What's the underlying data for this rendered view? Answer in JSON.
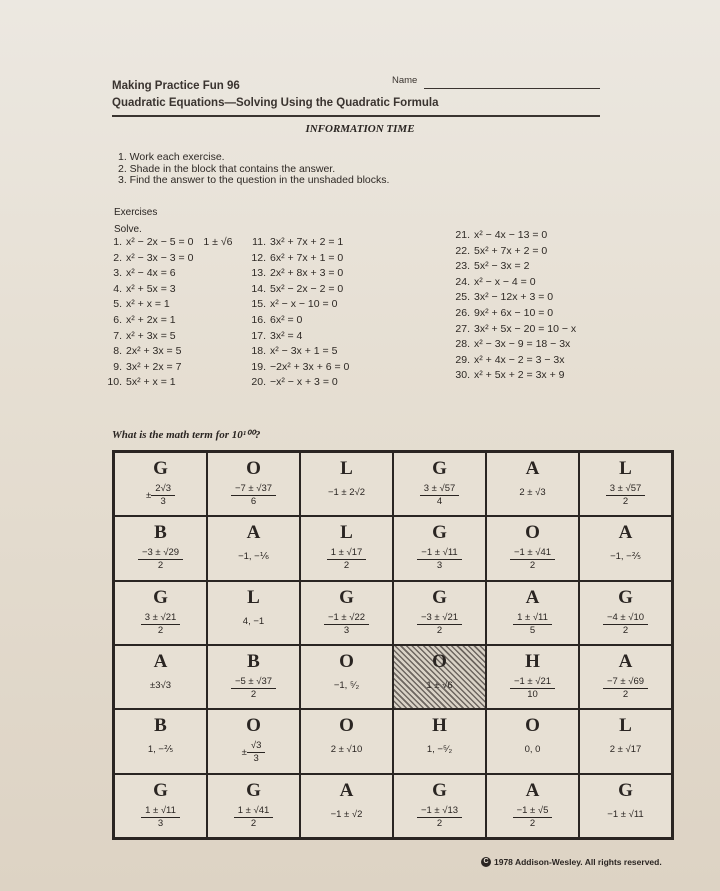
{
  "header": {
    "series": "Making Practice Fun 96",
    "name_label": "Name",
    "subtitle": "Quadratic Equations—Solving Using the Quadratic Formula",
    "section": "INFORMATION TIME"
  },
  "instructions": [
    "1.  Work each exercise.",
    "2.  Shade in the block that contains the answer.",
    "3.  Find the answer to the question in the unshaded blocks."
  ],
  "exercises_heading": "Exercises",
  "solve_label": "Solve.",
  "exercises": [
    {
      "n": "1.",
      "eq": "x² − 2x − 5 = 0",
      "answer": "1 ± √6"
    },
    {
      "n": "2.",
      "eq": "x² − 3x − 3 = 0"
    },
    {
      "n": "3.",
      "eq": "x² − 4x = 6"
    },
    {
      "n": "4.",
      "eq": "x² + 5x = 3"
    },
    {
      "n": "5.",
      "eq": "x² + x = 1"
    },
    {
      "n": "6.",
      "eq": "x² + 2x = 1"
    },
    {
      "n": "7.",
      "eq": "x² + 3x = 5"
    },
    {
      "n": "8.",
      "eq": "2x² + 3x = 5"
    },
    {
      "n": "9.",
      "eq": "3x² + 2x = 7"
    },
    {
      "n": "10.",
      "eq": "5x² + x = 1"
    },
    {
      "n": "11.",
      "eq": "3x² + 7x + 2 = 1"
    },
    {
      "n": "12.",
      "eq": "6x² + 7x + 1 = 0"
    },
    {
      "n": "13.",
      "eq": "2x² + 8x + 3 = 0"
    },
    {
      "n": "14.",
      "eq": "5x² − 2x − 2 = 0"
    },
    {
      "n": "15.",
      "eq": "x² − x − 10 = 0"
    },
    {
      "n": "16.",
      "eq": "6x² = 0"
    },
    {
      "n": "17.",
      "eq": "3x² = 4"
    },
    {
      "n": "18.",
      "eq": "x² − 3x + 1 = 5"
    },
    {
      "n": "19.",
      "eq": "−2x² + 3x + 6 = 0"
    },
    {
      "n": "20.",
      "eq": "−x² − x + 3 = 0"
    },
    {
      "n": "21.",
      "eq": "x² − 4x − 13 = 0"
    },
    {
      "n": "22.",
      "eq": "5x² + 7x + 2 = 0"
    },
    {
      "n": "23.",
      "eq": "5x² − 3x = 2"
    },
    {
      "n": "24.",
      "eq": "x² − x − 4 = 0"
    },
    {
      "n": "25.",
      "eq": "3x² − 12x + 3 = 0"
    },
    {
      "n": "26.",
      "eq": "9x² + 6x − 10 = 0"
    },
    {
      "n": "27.",
      "eq": "3x² + 5x − 20 = 10 − x"
    },
    {
      "n": "28.",
      "eq": "x² − 3x − 9 = 18 − 3x"
    },
    {
      "n": "29.",
      "eq": "x² + 4x − 2 = 3 − 3x"
    },
    {
      "n": "30.",
      "eq": "x² + 5x + 2 = 3x + 9"
    }
  ],
  "question": "What is the math term for 10¹⁰⁰?",
  "grid": [
    {
      "letter": "G",
      "pre": "±",
      "num": "2√3",
      "den": "3"
    },
    {
      "letter": "O",
      "num": "−7 ± √37",
      "den": "6"
    },
    {
      "letter": "L",
      "text": "−1 ± 2√2"
    },
    {
      "letter": "G",
      "num": "3 ± √57",
      "den": "4"
    },
    {
      "letter": "A",
      "text": "2 ± √3"
    },
    {
      "letter": "L",
      "num": "3 ± √57",
      "den": "2"
    },
    {
      "letter": "B",
      "num": "−3 ± √29",
      "den": "2"
    },
    {
      "letter": "A",
      "text": "−1, −⅙"
    },
    {
      "letter": "L",
      "num": "1 ± √17",
      "den": "2"
    },
    {
      "letter": "G",
      "num": "−1 ± √11",
      "den": "3"
    },
    {
      "letter": "O",
      "num": "−1 ± √41",
      "den": "2"
    },
    {
      "letter": "A",
      "text": "−1, −⅖"
    },
    {
      "letter": "G",
      "num": "3 ± √21",
      "den": "2"
    },
    {
      "letter": "L",
      "text": "4, −1"
    },
    {
      "letter": "G",
      "num": "−1 ± √22",
      "den": "3"
    },
    {
      "letter": "G",
      "num": "−3 ± √21",
      "den": "2"
    },
    {
      "letter": "A",
      "num": "1 ± √11",
      "den": "5"
    },
    {
      "letter": "G",
      "num": "−4 ± √10",
      "den": "2"
    },
    {
      "letter": "A",
      "text": "±3√3"
    },
    {
      "letter": "B",
      "num": "−5 ± √37",
      "den": "2"
    },
    {
      "letter": "O",
      "text": "−1, ⁵⁄₂"
    },
    {
      "letter": "O",
      "text": "1 ± √6",
      "shaded": true
    },
    {
      "letter": "H",
      "num": "−1 ± √21",
      "den": "10"
    },
    {
      "letter": "A",
      "num": "−7 ± √69",
      "den": "2"
    },
    {
      "letter": "B",
      "text": "1, −⅖"
    },
    {
      "letter": "O",
      "pre": "±",
      "num": "√3",
      "den": "3"
    },
    {
      "letter": "O",
      "text": "2 ± √10"
    },
    {
      "letter": "H",
      "text": "1, −⁵⁄₂"
    },
    {
      "letter": "O",
      "text": "0, 0"
    },
    {
      "letter": "L",
      "text": "2 ± √17"
    },
    {
      "letter": "G",
      "num": "1 ± √11",
      "den": "3"
    },
    {
      "letter": "G",
      "num": "1 ± √41",
      "den": "2"
    },
    {
      "letter": "A",
      "text": "−1 ± √2"
    },
    {
      "letter": "G",
      "num": "−1 ± √13",
      "den": "2"
    },
    {
      "letter": "A",
      "num": "−1 ± √5",
      "den": "2"
    },
    {
      "letter": "G",
      "text": "−1 ± √11"
    }
  ],
  "footer": {
    "copyright_icon": "copyright-circle-icon",
    "text": "1978 Addison-Wesley. All rights reserved."
  }
}
